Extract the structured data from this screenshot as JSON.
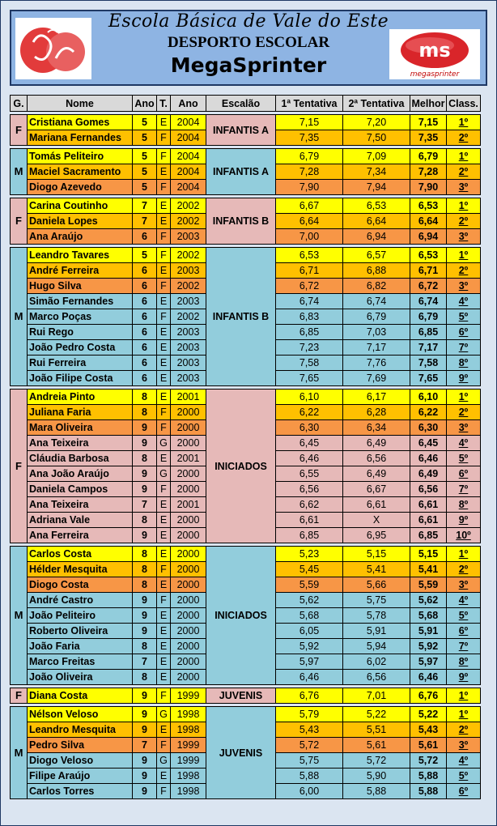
{
  "header": {
    "school": "Escola Básica de Vale do Este",
    "subtitle": "DESPORTO ESCOLAR",
    "event": "MegaSprinter",
    "brand_logo_text": "ms",
    "brand_logo_caption": "megasprinter"
  },
  "columns": [
    "G.",
    "Nome",
    "Ano",
    "T.",
    "Ano",
    "Escalão",
    "1ª Tentativa",
    "2ª Tentativa",
    "Melhor",
    "Class."
  ],
  "colors": {
    "yellow": "#ffff00",
    "orange": "#ffc000",
    "dark_orange": "#f79646",
    "blue": "#92cddc",
    "pink": "#e6b9b8",
    "header_bg": "#8eb4e3"
  },
  "groups": [
    {
      "gender": "F",
      "escalao": "INFANTIS A",
      "bg": "#e6b9b8",
      "rows": [
        [
          "Cristiana Gomes",
          "5",
          "E",
          "2004",
          "7,15",
          "7,20",
          "7,15",
          "1º"
        ],
        [
          "Mariana Fernandes",
          "5",
          "F",
          "2004",
          "7,35",
          "7,50",
          "7,35",
          "2º"
        ]
      ]
    },
    {
      "gender": "M",
      "escalao": "INFANTIS A",
      "bg": "#92cddc",
      "rows": [
        [
          "Tomás Peliteiro",
          "5",
          "F",
          "2004",
          "6,79",
          "7,09",
          "6,79",
          "1º"
        ],
        [
          "Maciel Sacramento",
          "5",
          "E",
          "2004",
          "7,28",
          "7,34",
          "7,28",
          "2º"
        ],
        [
          "Diogo Azevedo",
          "5",
          "F",
          "2004",
          "7,90",
          "7,94",
          "7,90",
          "3º"
        ]
      ]
    },
    {
      "gender": "F",
      "escalao": "INFANTIS B",
      "bg": "#e6b9b8",
      "rows": [
        [
          "Carina Coutinho",
          "7",
          "E",
          "2002",
          "6,67",
          "6,53",
          "6,53",
          "1º"
        ],
        [
          "Daniela Lopes",
          "7",
          "E",
          "2002",
          "6,64",
          "6,64",
          "6,64",
          "2º"
        ],
        [
          "Ana Araújo",
          "6",
          "F",
          "2003",
          "7,00",
          "6,94",
          "6,94",
          "3º"
        ]
      ]
    },
    {
      "gender": "M",
      "escalao": "INFANTIS B",
      "bg": "#92cddc",
      "rows": [
        [
          "Leandro Tavares",
          "5",
          "F",
          "2002",
          "6,53",
          "6,57",
          "6,53",
          "1º"
        ],
        [
          "André Ferreira",
          "6",
          "E",
          "2003",
          "6,71",
          "6,88",
          "6,71",
          "2º"
        ],
        [
          "Hugo Silva",
          "6",
          "F",
          "2002",
          "6,72",
          "6,82",
          "6,72",
          "3º"
        ],
        [
          "Simão Fernandes",
          "6",
          "E",
          "2003",
          "6,74",
          "6,74",
          "6,74",
          "4º"
        ],
        [
          "Marco Poças",
          "6",
          "F",
          "2002",
          "6,83",
          "6,79",
          "6,79",
          "5º"
        ],
        [
          "Rui Rego",
          "6",
          "E",
          "2003",
          "6,85",
          "7,03",
          "6,85",
          "6º"
        ],
        [
          "João Pedro Costa",
          "6",
          "E",
          "2003",
          "7,23",
          "7,17",
          "7,17",
          "7º"
        ],
        [
          "Rui Ferreira",
          "6",
          "E",
          "2003",
          "7,58",
          "7,76",
          "7,58",
          "8º"
        ],
        [
          "João Filipe Costa",
          "6",
          "E",
          "2003",
          "7,65",
          "7,69",
          "7,65",
          "9º"
        ]
      ]
    },
    {
      "gender": "F",
      "escalao": "INICIADOS",
      "bg": "#e6b9b8",
      "rows": [
        [
          "Andreia Pinto",
          "8",
          "E",
          "2001",
          "6,10",
          "6,17",
          "6,10",
          "1º"
        ],
        [
          "Juliana Faria",
          "8",
          "F",
          "2000",
          "6,22",
          "6,28",
          "6,22",
          "2º"
        ],
        [
          "Mara Oliveira",
          "9",
          "F",
          "2000",
          "6,30",
          "6,34",
          "6,30",
          "3º"
        ],
        [
          "Ana Teixeira",
          "9",
          "G",
          "2000",
          "6,45",
          "6,49",
          "6,45",
          "4º"
        ],
        [
          "Cláudia Barbosa",
          "8",
          "E",
          "2001",
          "6,46",
          "6,56",
          "6,46",
          "5º"
        ],
        [
          "Ana João Araújo",
          "9",
          "G",
          "2000",
          "6,55",
          "6,49",
          "6,49",
          "6º"
        ],
        [
          "Daniela Campos",
          "9",
          "F",
          "2000",
          "6,56",
          "6,67",
          "6,56",
          "7º"
        ],
        [
          "Ana Teixeira",
          "7",
          "E",
          "2001",
          "6,62",
          "6,61",
          "6,61",
          "8º"
        ],
        [
          "Adriana Vale",
          "8",
          "E",
          "2000",
          "6,61",
          "X",
          "6,61",
          "9º"
        ],
        [
          "Ana Ferreira",
          "9",
          "E",
          "2000",
          "6,85",
          "6,95",
          "6,85",
          "10º"
        ]
      ]
    },
    {
      "gender": "M",
      "escalao": "INICIADOS",
      "bg": "#92cddc",
      "rows": [
        [
          "Carlos Costa",
          "8",
          "E",
          "2000",
          "5,23",
          "5,15",
          "5,15",
          "1º"
        ],
        [
          "Hélder Mesquita",
          "8",
          "F",
          "2000",
          "5,45",
          "5,41",
          "5,41",
          "2º"
        ],
        [
          "Diogo Costa",
          "8",
          "E",
          "2000",
          "5,59",
          "5,66",
          "5,59",
          "3º"
        ],
        [
          "André Castro",
          "9",
          "F",
          "2000",
          "5,62",
          "5,75",
          "5,62",
          "4º"
        ],
        [
          "João Peliteiro",
          "9",
          "E",
          "2000",
          "5,68",
          "5,78",
          "5,68",
          "5º"
        ],
        [
          "Roberto Oliveira",
          "9",
          "E",
          "2000",
          "6,05",
          "5,91",
          "5,91",
          "6º"
        ],
        [
          "João Faria",
          "8",
          "E",
          "2000",
          "5,92",
          "5,94",
          "5,92",
          "7º"
        ],
        [
          "Marco Freitas",
          "7",
          "E",
          "2000",
          "5,97",
          "6,02",
          "5,97",
          "8º"
        ],
        [
          "João Oliveira",
          "8",
          "E",
          "2000",
          "6,46",
          "6,56",
          "6,46",
          "9º"
        ]
      ]
    },
    {
      "gender": "F",
      "escalao": "JUVENIS",
      "bg": "#e6b9b8",
      "rows": [
        [
          "Diana Costa",
          "9",
          "F",
          "1999",
          "6,76",
          "7,01",
          "6,76",
          "1º"
        ]
      ]
    },
    {
      "gender": "M",
      "escalao": "JUVENIS",
      "bg": "#92cddc",
      "rows": [
        [
          "Nélson Veloso",
          "9",
          "G",
          "1998",
          "5,79",
          "5,22",
          "5,22",
          "1º"
        ],
        [
          "Leandro Mesquita",
          "9",
          "E",
          "1998",
          "5,43",
          "5,51",
          "5,43",
          "2º"
        ],
        [
          "Pedro Silva",
          "7",
          "F",
          "1999",
          "5,72",
          "5,61",
          "5,61",
          "3º"
        ],
        [
          "Diogo Veloso",
          "9",
          "G",
          "1999",
          "5,75",
          "5,72",
          "5,72",
          "4º"
        ],
        [
          "Filipe Araújo",
          "9",
          "E",
          "1998",
          "5,88",
          "5,90",
          "5,88",
          "5º"
        ],
        [
          "Carlos Torres",
          "9",
          "F",
          "1998",
          "6,00",
          "5,88",
          "5,88",
          "6º"
        ]
      ]
    }
  ]
}
